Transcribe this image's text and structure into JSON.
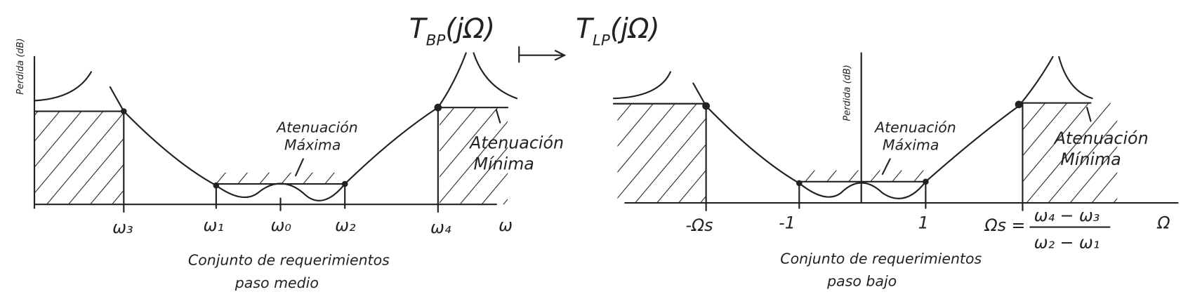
{
  "transform": {
    "from": {
      "symbol": "T",
      "subscript": "BP",
      "argument": "(jΩ)"
    },
    "to": {
      "symbol": "T",
      "subscript": "LP",
      "argument": "(jΩ)"
    }
  },
  "bandpass": {
    "y_label": "Perdida (dB)",
    "max_attenuation": [
      "Atenuación",
      "Máxima"
    ],
    "min_attenuation": [
      "Atenuación",
      "Mínima"
    ],
    "x_labels": [
      "ω₃",
      "ω₁",
      "ω₀",
      "ω₂",
      "ω₄",
      "ω"
    ],
    "caption": [
      "Conjunto de requerimientos",
      "paso medio"
    ]
  },
  "lowpass": {
    "y_label": "Perdida (dB)",
    "max_attenuation": [
      "Atenuación",
      "Máxima"
    ],
    "min_attenuation": [
      "Atenuación",
      "Mínima"
    ],
    "x_labels": [
      "-Ωs",
      "-1",
      "1",
      "Ω"
    ],
    "formula": {
      "lhs": "Ωs =",
      "numerator": "ω₄ − ω₃",
      "denominator": "ω₂ − ω₁"
    },
    "caption": [
      "Conjunto de requerimientos",
      "paso bajo"
    ]
  }
}
